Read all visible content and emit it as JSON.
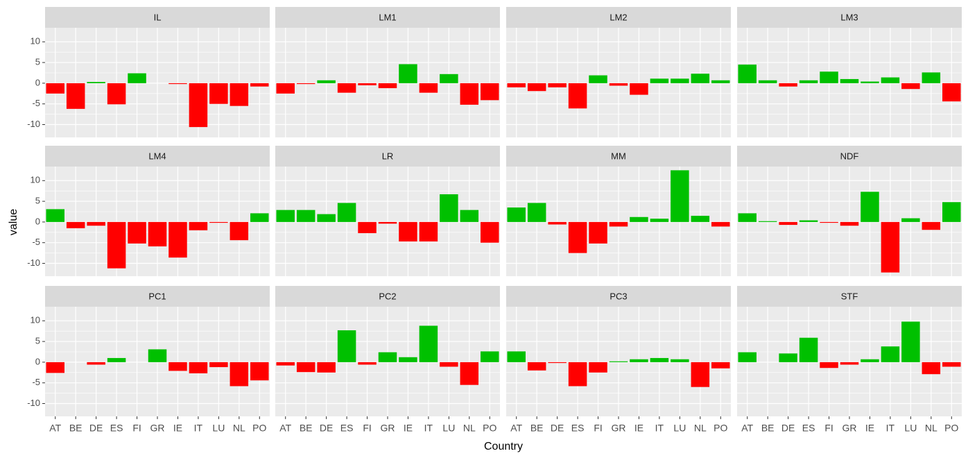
{
  "chart_data": {
    "type": "bar",
    "xlabel": "Country",
    "ylabel": "value",
    "categories": [
      "AT",
      "BE",
      "DE",
      "ES",
      "FI",
      "GR",
      "IE",
      "IT",
      "LU",
      "NL",
      "PO"
    ],
    "ylim": [
      -13.1,
      13.4
    ],
    "yticks": [
      10,
      5,
      0,
      -5,
      -10
    ],
    "grid": true,
    "colors": {
      "positive": "#00c000",
      "negative": "#ff0000"
    },
    "facets": [
      {
        "name": "IL",
        "values": [
          -2.5,
          -6.2,
          0.3,
          -5.1,
          2.4,
          0,
          -0.2,
          -10.6,
          -5,
          -5.5,
          -0.8
        ]
      },
      {
        "name": "LM1",
        "values": [
          -2.5,
          -0.2,
          0.7,
          -2.3,
          -0.5,
          -1.2,
          4.6,
          -2.3,
          2.2,
          -5.2,
          -4.1
        ]
      },
      {
        "name": "LM2",
        "values": [
          -1,
          -1.9,
          -1,
          -6.1,
          1.9,
          -0.6,
          -2.8,
          1.1,
          1.1,
          2.3,
          0.7
        ]
      },
      {
        "name": "LM3",
        "values": [
          4.5,
          0.7,
          -0.8,
          0.7,
          2.8,
          1,
          0.4,
          1.4,
          -1.4,
          2.6,
          -4.4
        ]
      },
      {
        "name": "LM4",
        "values": [
          3.1,
          -1.5,
          -0.9,
          -11.2,
          -5.2,
          -5.9,
          -8.6,
          -2,
          -0.2,
          -4.4,
          2.1
        ]
      },
      {
        "name": "LR",
        "values": [
          2.9,
          2.9,
          1.9,
          4.6,
          -2.7,
          -0.4,
          -4.7,
          -4.7,
          6.7,
          2.9,
          -5
        ]
      },
      {
        "name": "MM",
        "values": [
          3.5,
          4.6,
          -0.6,
          -7.5,
          -5.2,
          -1.1,
          1.2,
          0.8,
          12.5,
          1.5,
          -1.1
        ]
      },
      {
        "name": "NDF",
        "values": [
          2.1,
          0.2,
          -0.7,
          0.4,
          -0.2,
          -0.9,
          7.3,
          -12.2,
          0.9,
          -1.9,
          4.8
        ]
      },
      {
        "name": "PC1",
        "values": [
          -2.6,
          0,
          -0.6,
          1,
          0,
          3.1,
          -2.1,
          -2.7,
          -1.2,
          -5.8,
          -4.4
        ]
      },
      {
        "name": "PC2",
        "values": [
          -0.8,
          -2.4,
          -2.5,
          7.7,
          -0.6,
          2.4,
          1.2,
          8.8,
          -1.1,
          -5.5,
          2.6
        ]
      },
      {
        "name": "PC3",
        "values": [
          2.6,
          -2,
          -0.2,
          -5.8,
          -2.5,
          0.2,
          0.7,
          1,
          0.7,
          -6,
          -1.5
        ]
      },
      {
        "name": "STF",
        "values": [
          2.4,
          0,
          2.1,
          5.9,
          -1.4,
          -0.6,
          0.7,
          3.8,
          9.8,
          -2.9,
          -1.1
        ]
      }
    ]
  }
}
